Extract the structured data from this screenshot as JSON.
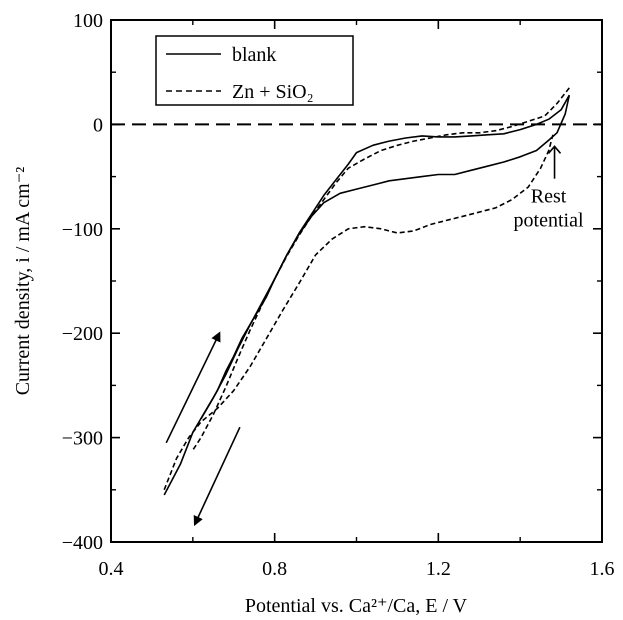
{
  "chart_data": {
    "type": "line",
    "xlabel": "Potential vs. Ca²⁺/Ca, E / V",
    "ylabel": "Current density, i / mA cm⁻²",
    "xlim": [
      0.4,
      1.6
    ],
    "ylim": [
      -400,
      100
    ],
    "xticks": [
      "0.4",
      "0.8",
      "1.2",
      "1.6"
    ],
    "yticks": [
      "100",
      "0",
      "−100",
      "−200",
      "−300",
      "−400"
    ],
    "legend_position": "top-left",
    "reference_line": {
      "y": 0,
      "style": "dashed"
    },
    "series": [
      {
        "name": "blank",
        "style": "solid",
        "forward": [
          [
            0.53,
            -355
          ],
          [
            0.57,
            -325
          ],
          [
            0.6,
            -295
          ],
          [
            0.63,
            -275
          ],
          [
            0.66,
            -255
          ],
          [
            0.68,
            -237
          ],
          [
            0.7,
            -222
          ],
          [
            0.72,
            -205
          ],
          [
            0.75,
            -185
          ],
          [
            0.78,
            -165
          ],
          [
            0.8,
            -148
          ],
          [
            0.83,
            -125
          ],
          [
            0.86,
            -105
          ],
          [
            0.89,
            -88
          ],
          [
            0.92,
            -75
          ],
          [
            0.96,
            -66
          ],
          [
            1.0,
            -62
          ],
          [
            1.04,
            -58
          ],
          [
            1.08,
            -54
          ],
          [
            1.12,
            -52
          ],
          [
            1.16,
            -50
          ],
          [
            1.2,
            -48
          ],
          [
            1.24,
            -48
          ],
          [
            1.28,
            -44
          ],
          [
            1.32,
            -40
          ],
          [
            1.36,
            -36
          ],
          [
            1.4,
            -31
          ],
          [
            1.44,
            -25
          ],
          [
            1.47,
            -15
          ],
          [
            1.49,
            -8
          ],
          [
            1.51,
            10
          ],
          [
            1.52,
            28
          ]
        ],
        "reverse": [
          [
            1.52,
            28
          ],
          [
            1.5,
            14
          ],
          [
            1.47,
            5
          ],
          [
            1.44,
            0
          ],
          [
            1.4,
            -5
          ],
          [
            1.36,
            -9
          ],
          [
            1.32,
            -10
          ],
          [
            1.28,
            -11
          ],
          [
            1.24,
            -12
          ],
          [
            1.2,
            -12
          ],
          [
            1.16,
            -11
          ],
          [
            1.12,
            -13
          ],
          [
            1.08,
            -16
          ],
          [
            1.04,
            -20
          ],
          [
            1.0,
            -27
          ],
          [
            0.98,
            -38
          ],
          [
            0.95,
            -53
          ],
          [
            0.92,
            -68
          ],
          [
            0.89,
            -86
          ],
          [
            0.86,
            -104
          ],
          [
            0.83,
            -125
          ],
          [
            0.8,
            -148
          ],
          [
            0.77,
            -170
          ],
          [
            0.74,
            -192
          ],
          [
            0.71,
            -215
          ],
          [
            0.68,
            -240
          ],
          [
            0.65,
            -262
          ],
          [
            0.62,
            -282
          ]
        ]
      },
      {
        "name": "Zn + SiO₂",
        "style": "dashed",
        "forward": [
          [
            0.53,
            -350
          ],
          [
            0.56,
            -320
          ],
          [
            0.59,
            -300
          ],
          [
            0.62,
            -285
          ],
          [
            0.66,
            -272
          ],
          [
            0.7,
            -255
          ],
          [
            0.74,
            -232
          ],
          [
            0.78,
            -205
          ],
          [
            0.82,
            -178
          ],
          [
            0.86,
            -152
          ],
          [
            0.9,
            -125
          ],
          [
            0.94,
            -110
          ],
          [
            0.98,
            -100
          ],
          [
            1.02,
            -98
          ],
          [
            1.06,
            -100
          ],
          [
            1.1,
            -104
          ],
          [
            1.14,
            -102
          ],
          [
            1.18,
            -96
          ],
          [
            1.22,
            -92
          ],
          [
            1.26,
            -88
          ],
          [
            1.3,
            -84
          ],
          [
            1.34,
            -80
          ],
          [
            1.38,
            -72
          ],
          [
            1.42,
            -60
          ],
          [
            1.45,
            -42
          ],
          [
            1.47,
            -25
          ],
          [
            1.48,
            -10
          ]
        ],
        "reverse": [
          [
            1.52,
            35
          ],
          [
            1.49,
            20
          ],
          [
            1.46,
            8
          ],
          [
            1.42,
            3
          ],
          [
            1.38,
            -2
          ],
          [
            1.34,
            -6
          ],
          [
            1.3,
            -8
          ],
          [
            1.26,
            -8
          ],
          [
            1.22,
            -10
          ],
          [
            1.18,
            -13
          ],
          [
            1.14,
            -16
          ],
          [
            1.1,
            -20
          ],
          [
            1.06,
            -25
          ],
          [
            1.02,
            -33
          ],
          [
            0.98,
            -42
          ],
          [
            0.95,
            -56
          ],
          [
            0.92,
            -72
          ],
          [
            0.89,
            -88
          ],
          [
            0.86,
            -106
          ],
          [
            0.83,
            -126
          ],
          [
            0.8,
            -148
          ],
          [
            0.77,
            -172
          ],
          [
            0.74,
            -197
          ],
          [
            0.71,
            -224
          ],
          [
            0.68,
            -252
          ],
          [
            0.65,
            -278
          ],
          [
            0.62,
            -300
          ],
          [
            0.6,
            -312
          ]
        ]
      }
    ],
    "annotations": [
      {
        "text_lines": [
          "Rest",
          "potential"
        ],
        "arrow_from": [
          1.484,
          -52
        ],
        "arrow_to": [
          1.484,
          -22
        ]
      },
      {
        "text": "",
        "arrow_from": [
          0.535,
          -305
        ],
        "arrow_to": [
          0.665,
          -200
        ]
      },
      {
        "text": "",
        "arrow_from": [
          0.715,
          -290
        ],
        "arrow_to": [
          0.605,
          -383
        ]
      }
    ]
  }
}
